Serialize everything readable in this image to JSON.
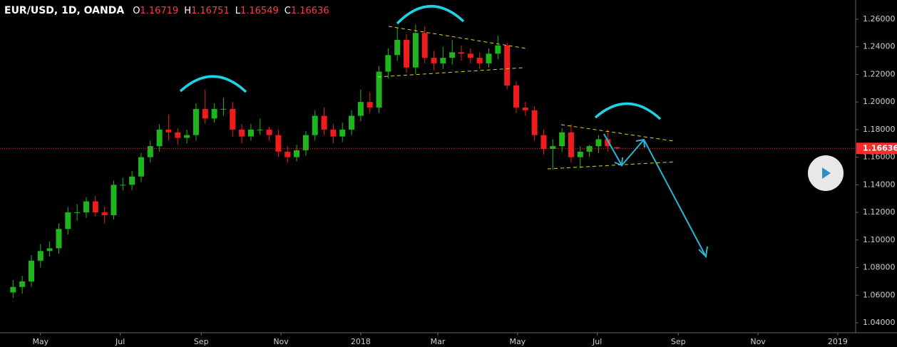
{
  "chart_data": {
    "type": "candlestick",
    "header": {
      "symbol": "EUR/USD, 1D, OANDA",
      "open_label": "O",
      "high_label": "H",
      "low_label": "L",
      "close_label": "C"
    },
    "x": [
      9,
      16,
      23,
      30,
      37,
      44,
      51,
      58,
      65,
      72,
      79,
      86,
      93,
      100,
      107,
      114,
      121,
      128,
      135,
      142,
      149,
      156,
      163,
      170,
      177,
      184,
      191,
      198,
      205,
      212,
      219,
      226,
      233,
      240,
      247,
      254,
      261,
      268,
      275,
      282,
      289,
      296,
      303,
      310,
      317,
      324,
      331,
      338,
      345,
      352,
      359,
      366,
      373,
      380,
      387,
      394,
      401,
      408,
      415,
      422,
      429,
      436,
      443,
      450,
      457,
      464,
      471
    ],
    "series": [
      {
        "up_color": "#1fb51f",
        "down_color": "#ee1c1c",
        "open": [
          1.062,
          1.066,
          1.07,
          1.085,
          1.092,
          1.094,
          1.108,
          1.12,
          1.12,
          1.128,
          1.12,
          1.118,
          1.14,
          1.14,
          1.146,
          1.16,
          1.168,
          1.18,
          1.178,
          1.174,
          1.176,
          1.195,
          1.188,
          1.195,
          1.195,
          1.18,
          1.175,
          1.18,
          1.18,
          1.176,
          1.164,
          1.16,
          1.165,
          1.176,
          1.19,
          1.18,
          1.175,
          1.18,
          1.19,
          1.2,
          1.196,
          1.222,
          1.234,
          1.245,
          1.225,
          1.25,
          1.232,
          1.228,
          1.232,
          1.236,
          1.235,
          1.232,
          1.228,
          1.235,
          1.241,
          1.212,
          1.196,
          1.194,
          1.176,
          1.166,
          1.168,
          1.178,
          1.16,
          1.164,
          1.168,
          1.173,
          1.16719
        ],
        "high": [
          1.071,
          1.074,
          1.089,
          1.097,
          1.099,
          1.112,
          1.124,
          1.126,
          1.131,
          1.132,
          1.124,
          1.143,
          1.145,
          1.15,
          1.163,
          1.172,
          1.184,
          1.191,
          1.181,
          1.18,
          1.199,
          1.209,
          1.199,
          1.203,
          1.2,
          1.184,
          1.184,
          1.188,
          1.182,
          1.18,
          1.168,
          1.169,
          1.179,
          1.194,
          1.196,
          1.184,
          1.185,
          1.194,
          1.209,
          1.207,
          1.226,
          1.239,
          1.254,
          1.249,
          1.256,
          1.255,
          1.237,
          1.24,
          1.245,
          1.241,
          1.239,
          1.236,
          1.239,
          1.248,
          1.243,
          1.215,
          1.2,
          1.197,
          1.18,
          1.173,
          1.181,
          1.184,
          1.168,
          1.169,
          1.176,
          1.18,
          1.16751
        ],
        "low": [
          1.058,
          1.061,
          1.066,
          1.08,
          1.088,
          1.09,
          1.104,
          1.114,
          1.116,
          1.117,
          1.112,
          1.115,
          1.136,
          1.136,
          1.142,
          1.156,
          1.164,
          1.172,
          1.169,
          1.17,
          1.172,
          1.184,
          1.185,
          1.19,
          1.175,
          1.17,
          1.172,
          1.176,
          1.172,
          1.16,
          1.156,
          1.157,
          1.161,
          1.172,
          1.176,
          1.17,
          1.171,
          1.176,
          1.186,
          1.192,
          1.192,
          1.217,
          1.23,
          1.221,
          1.22,
          1.228,
          1.223,
          1.224,
          1.227,
          1.23,
          1.228,
          1.224,
          1.225,
          1.231,
          1.209,
          1.192,
          1.19,
          1.172,
          1.162,
          1.151,
          1.164,
          1.156,
          1.152,
          1.16,
          1.163,
          1.164,
          1.16549
        ],
        "close": [
          1.066,
          1.07,
          1.085,
          1.092,
          1.094,
          1.108,
          1.12,
          1.12,
          1.128,
          1.12,
          1.118,
          1.14,
          1.14,
          1.146,
          1.16,
          1.168,
          1.18,
          1.178,
          1.174,
          1.176,
          1.195,
          1.188,
          1.195,
          1.195,
          1.18,
          1.175,
          1.18,
          1.18,
          1.176,
          1.164,
          1.16,
          1.165,
          1.176,
          1.19,
          1.18,
          1.175,
          1.18,
          1.19,
          1.2,
          1.196,
          1.222,
          1.234,
          1.245,
          1.225,
          1.25,
          1.232,
          1.228,
          1.232,
          1.236,
          1.235,
          1.232,
          1.228,
          1.235,
          1.241,
          1.212,
          1.196,
          1.194,
          1.176,
          1.166,
          1.168,
          1.178,
          1.16,
          1.164,
          1.168,
          1.173,
          1.168,
          1.16636
        ]
      }
    ],
    "last_price": 1.16636,
    "last_price_color": "#ff2a2a",
    "xlim": [
      -1,
      653.7
    ],
    "ylim": [
      1.0328,
      1.2739
    ],
    "xticks": [
      {
        "value": 30,
        "label": "May"
      },
      {
        "value": 91,
        "label": "Jul"
      },
      {
        "value": 153,
        "label": "Sep"
      },
      {
        "value": 214,
        "label": "Nov"
      },
      {
        "value": 275,
        "label": "2018"
      },
      {
        "value": 334,
        "label": "Mar"
      },
      {
        "value": 395,
        "label": "May"
      },
      {
        "value": 456,
        "label": "Jul"
      },
      {
        "value": 518,
        "label": "Sep"
      },
      {
        "value": 579,
        "label": "Nov"
      },
      {
        "value": 640,
        "label": "2019"
      }
    ],
    "yticks": [
      {
        "value": 1.04,
        "label": "1.04000"
      },
      {
        "value": 1.06,
        "label": "1.06000"
      },
      {
        "value": 1.08,
        "label": "1.08000"
      },
      {
        "value": 1.1,
        "label": "1.10000"
      },
      {
        "value": 1.12,
        "label": "1.12000"
      },
      {
        "value": 1.14,
        "label": "1.14000"
      },
      {
        "value": 1.16,
        "label": "1.16000"
      },
      {
        "value": 1.18,
        "label": "1.18000"
      },
      {
        "value": 1.2,
        "label": "1.20000"
      },
      {
        "value": 1.22,
        "label": "1.22000"
      },
      {
        "value": 1.24,
        "label": "1.24000"
      },
      {
        "value": 1.26,
        "label": "1.26000"
      }
    ]
  }
}
